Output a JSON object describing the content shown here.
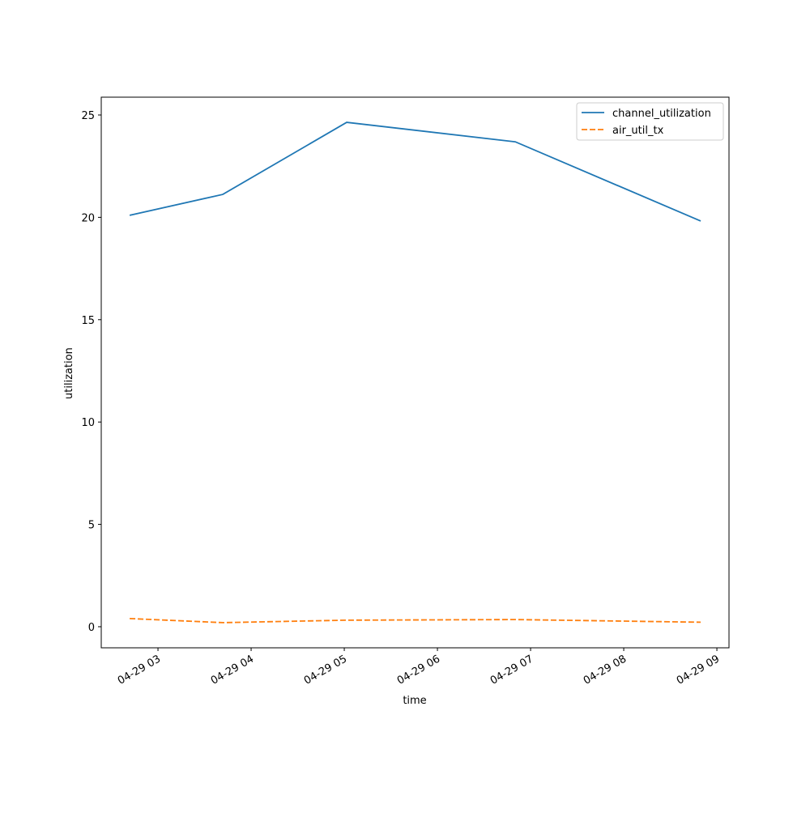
{
  "chart_data": {
    "type": "line",
    "xlabel": "time",
    "ylabel": "utilization",
    "x": [
      2.696,
      3.696,
      5.026,
      6.835,
      8.826
    ],
    "series": [
      {
        "name": "channel_utilization",
        "color": "#1f77b4",
        "dash": "solid",
        "values": [
          20.1,
          21.12,
          24.64,
          23.69,
          19.82
        ]
      },
      {
        "name": "air_util_tx",
        "color": "#ff7f0e",
        "dash": "dashed",
        "values": [
          0.4,
          0.2,
          0.32,
          0.35,
          0.22
        ]
      }
    ],
    "xlim": [
      2.391,
      9.13
    ],
    "xticks": [
      {
        "value": 3,
        "label": "04-29 03"
      },
      {
        "value": 4,
        "label": "04-29 04"
      },
      {
        "value": 5,
        "label": "04-29 05"
      },
      {
        "value": 6,
        "label": "04-29 06"
      },
      {
        "value": 7,
        "label": "04-29 07"
      },
      {
        "value": 8,
        "label": "04-29 08"
      },
      {
        "value": 9,
        "label": "04-29 09"
      }
    ],
    "ylim": [
      -1.03,
      25.87
    ],
    "yticks": [
      0,
      5,
      10,
      15,
      20,
      25
    ],
    "legend": "upper right",
    "grid": false
  }
}
